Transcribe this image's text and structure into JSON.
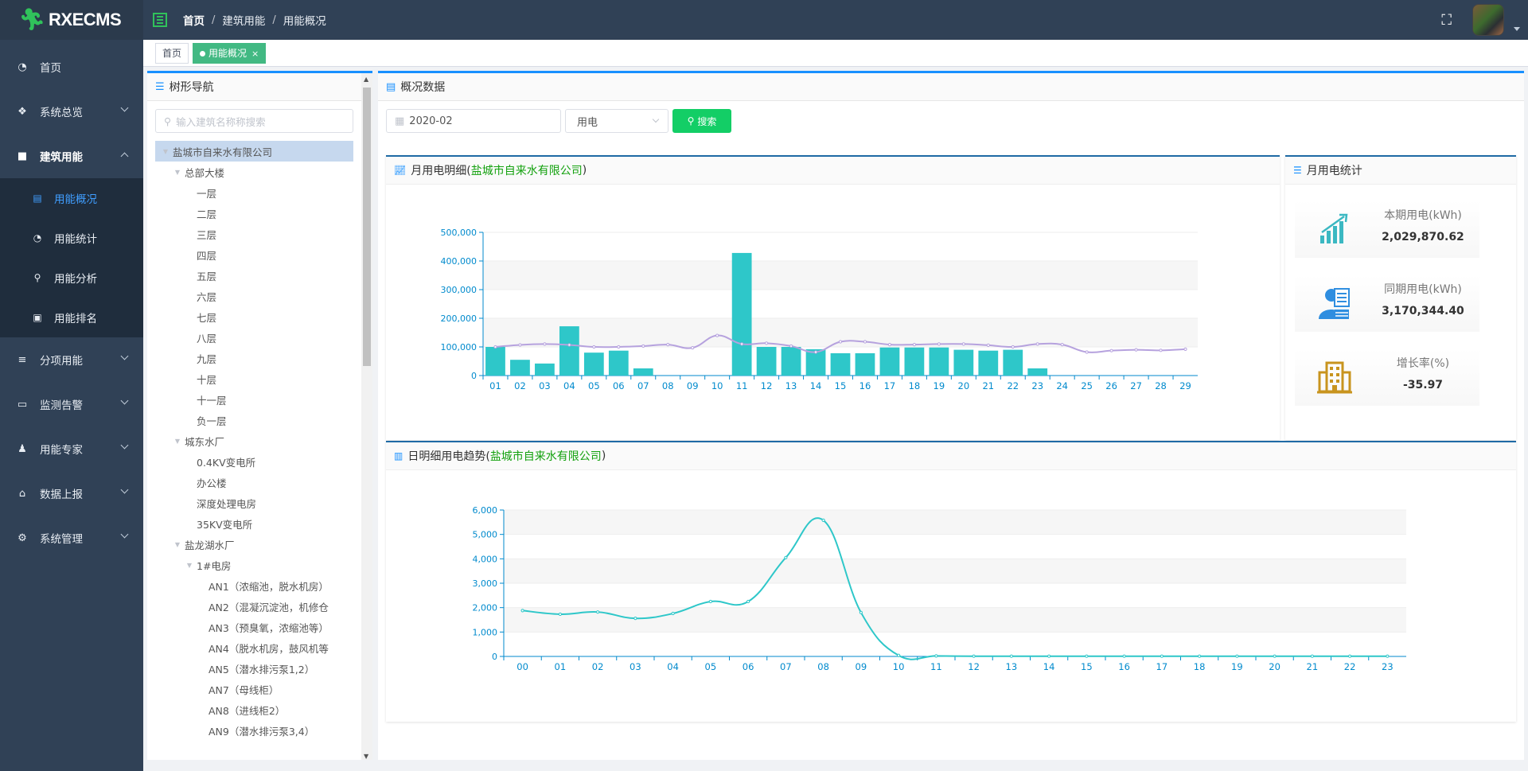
{
  "app": {
    "logo_text": "RXECMS"
  },
  "navbar": {
    "breadcrumb": [
      "首页",
      "建筑用能",
      "用能概况"
    ]
  },
  "sidebar": {
    "items": [
      {
        "label": "首页",
        "icon": "dashboard-icon",
        "expandable": false
      },
      {
        "label": "系统总览",
        "icon": "grid-icon",
        "expandable": true
      },
      {
        "label": "建筑用能",
        "icon": "lock-icon",
        "expandable": true,
        "expanded": true
      },
      {
        "label": "分项用能",
        "icon": "list-icon",
        "expandable": true
      },
      {
        "label": "监测告警",
        "icon": "monitor-icon",
        "expandable": true
      },
      {
        "label": "用能专家",
        "icon": "expert-icon",
        "expandable": true
      },
      {
        "label": "数据上报",
        "icon": "upload-icon",
        "expandable": true
      },
      {
        "label": "系统管理",
        "icon": "gear-icon",
        "expandable": true
      }
    ],
    "subitems": [
      {
        "label": "用能概况",
        "icon": "report-icon",
        "active": true
      },
      {
        "label": "用能统计",
        "icon": "dashboard-icon",
        "active": false
      },
      {
        "label": "用能分析",
        "icon": "analysis-icon",
        "active": false
      },
      {
        "label": "用能排名",
        "icon": "ranking-icon",
        "active": false
      }
    ]
  },
  "tags": {
    "home": "首页",
    "current": "用能概况",
    "close": "×"
  },
  "tree_panel": {
    "title": "树形导航",
    "search_placeholder": "输入建筑名称称搜索",
    "nodes": [
      {
        "label": "盐城市自来水有限公司",
        "level": 0,
        "toggle": "▼",
        "selected": true
      },
      {
        "label": "总部大楼",
        "level": 1,
        "toggle": "▼"
      },
      {
        "label": "一层",
        "level": 2,
        "toggle": ""
      },
      {
        "label": "二层",
        "level": 2,
        "toggle": ""
      },
      {
        "label": "三层",
        "level": 2,
        "toggle": ""
      },
      {
        "label": "四层",
        "level": 2,
        "toggle": ""
      },
      {
        "label": "五层",
        "level": 2,
        "toggle": ""
      },
      {
        "label": "六层",
        "level": 2,
        "toggle": ""
      },
      {
        "label": "七层",
        "level": 2,
        "toggle": ""
      },
      {
        "label": "八层",
        "level": 2,
        "toggle": ""
      },
      {
        "label": "九层",
        "level": 2,
        "toggle": ""
      },
      {
        "label": "十层",
        "level": 2,
        "toggle": ""
      },
      {
        "label": "十一层",
        "level": 2,
        "toggle": ""
      },
      {
        "label": "负一层",
        "level": 2,
        "toggle": ""
      },
      {
        "label": "城东水厂",
        "level": 1,
        "toggle": "▼"
      },
      {
        "label": "0.4KV变电所",
        "level": 2,
        "toggle": ""
      },
      {
        "label": "办公楼",
        "level": 2,
        "toggle": ""
      },
      {
        "label": "深度处理电房",
        "level": 2,
        "toggle": ""
      },
      {
        "label": "35KV变电所",
        "level": 2,
        "toggle": ""
      },
      {
        "label": "盐龙湖水厂",
        "level": 1,
        "toggle": "▼"
      },
      {
        "label": "1#电房",
        "level": 2,
        "toggle": "▼"
      },
      {
        "label": "AN1（浓缩池，脱水机房）",
        "level": 3,
        "toggle": ""
      },
      {
        "label": "AN2（混凝沉淀池，机修仓",
        "level": 3,
        "toggle": ""
      },
      {
        "label": "AN3（预臭氧，浓缩池等）",
        "level": 3,
        "toggle": ""
      },
      {
        "label": "AN4（脱水机房，鼓风机等",
        "level": 3,
        "toggle": ""
      },
      {
        "label": "AN5（潜水排污泵1,2）",
        "level": 3,
        "toggle": ""
      },
      {
        "label": "AN7（母线柜）",
        "level": 3,
        "toggle": ""
      },
      {
        "label": "AN8（进线柜2）",
        "level": 3,
        "toggle": ""
      },
      {
        "label": "AN9（潜水排污泵3,4）",
        "level": 3,
        "toggle": ""
      }
    ]
  },
  "content": {
    "title": "概况数据",
    "date_value": "2020-02",
    "energy_type": "用电",
    "search_label": "搜索",
    "monthly_title": "月用电明细(",
    "daily_title": "日明细用电趋势(",
    "org_name": "盐城市自来水有限公司",
    "title_close": ")",
    "stats_title": "月用电统计",
    "stats": [
      {
        "label": "本期用电(kWh)",
        "value": "2,029,870.62",
        "icon": "bar-chart-up-icon"
      },
      {
        "label": "同期用电(kWh)",
        "value": "3,170,344.40",
        "icon": "user-doc-icon"
      },
      {
        "label": "增长率(%)",
        "value": "-35.97",
        "icon": "building-icon"
      }
    ]
  },
  "chart_data": [
    {
      "type": "bar",
      "title": "月用电明细(盐城市自来水有限公司)",
      "categories": [
        "01",
        "02",
        "03",
        "04",
        "05",
        "06",
        "07",
        "08",
        "09",
        "10",
        "11",
        "12",
        "13",
        "14",
        "15",
        "16",
        "17",
        "18",
        "19",
        "20",
        "21",
        "22",
        "23",
        "24",
        "25",
        "26",
        "27",
        "28",
        "29"
      ],
      "series": [
        {
          "type": "bar",
          "values": [
            100000,
            55000,
            42000,
            172000,
            80000,
            87000,
            25000,
            0,
            0,
            0,
            428000,
            100000,
            100000,
            92000,
            78000,
            78000,
            98000,
            98000,
            98000,
            90000,
            87000,
            90000,
            25000,
            0,
            0,
            0,
            0,
            0,
            0
          ]
        },
        {
          "type": "line",
          "values": [
            100000,
            107000,
            110000,
            107000,
            100000,
            100000,
            103000,
            108000,
            97000,
            140000,
            110000,
            113000,
            103000,
            82000,
            118000,
            118000,
            108000,
            108000,
            110000,
            110000,
            106000,
            100000,
            110000,
            108000,
            82000,
            87000,
            90000,
            88000,
            92000
          ]
        }
      ],
      "yticks": [
        "0",
        "100,000",
        "200,000",
        "300,000",
        "400,000",
        "500,000"
      ],
      "ylim": [
        0,
        500000
      ],
      "grid": true,
      "colors": {
        "bar": "#2ec7c9",
        "line": "#b6a2de"
      }
    },
    {
      "type": "line",
      "title": "日明细用电趋势(盐城市自来水有限公司)",
      "categories": [
        "00",
        "01",
        "02",
        "03",
        "04",
        "05",
        "06",
        "07",
        "08",
        "09",
        "10",
        "11",
        "12",
        "13",
        "14",
        "15",
        "16",
        "17",
        "18",
        "19",
        "20",
        "21",
        "22",
        "23"
      ],
      "values": [
        1880,
        1730,
        1820,
        1560,
        1760,
        2250,
        2250,
        4050,
        5580,
        1800,
        40,
        20,
        10,
        10,
        10,
        10,
        10,
        10,
        10,
        10,
        10,
        10,
        10,
        10
      ],
      "yticks": [
        "0",
        "1,000",
        "2,000",
        "3,000",
        "4,000",
        "5,000",
        "6,000"
      ],
      "ylim": [
        0,
        6000
      ],
      "grid": true,
      "colors": {
        "line": "#2ec7c9"
      }
    }
  ]
}
